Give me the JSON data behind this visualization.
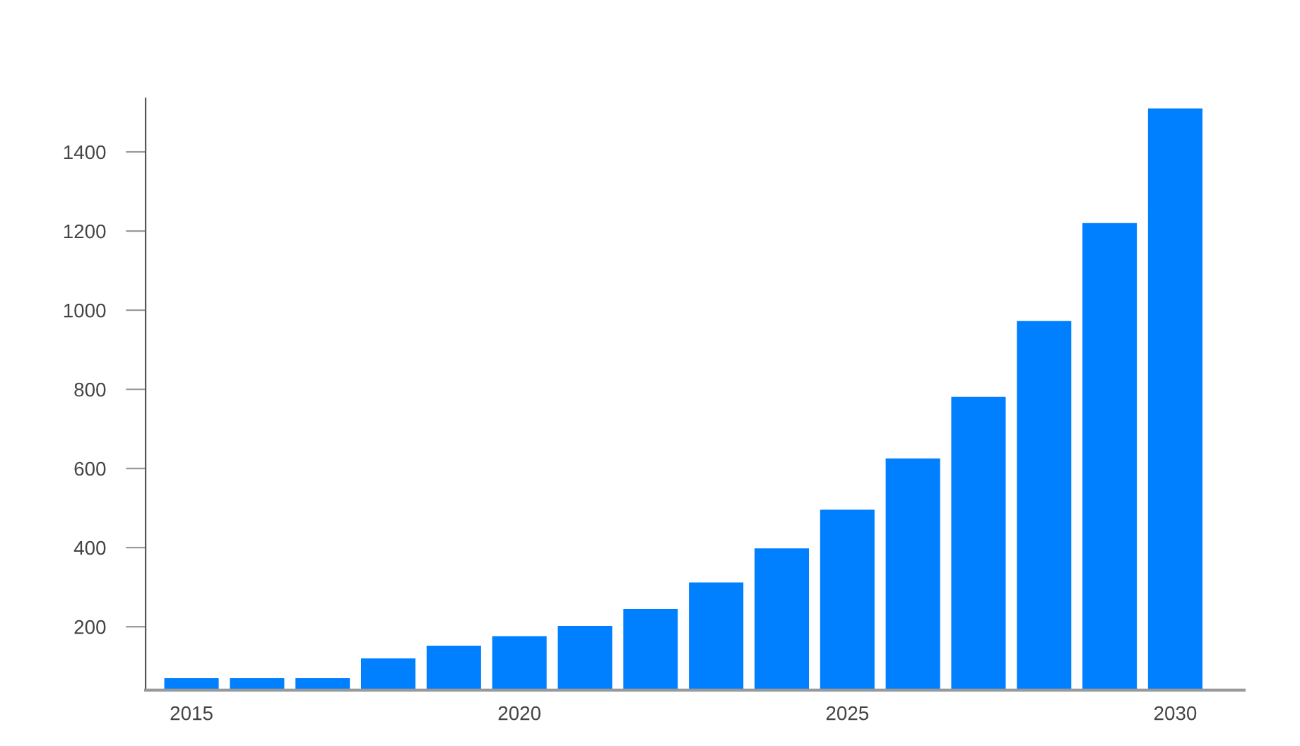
{
  "chart_data": {
    "type": "bar",
    "x": [
      2015,
      2016,
      2017,
      2018,
      2019,
      2020,
      2021,
      2022,
      2023,
      2024,
      2025,
      2026,
      2027,
      2028,
      2029,
      2030
    ],
    "values": [
      70,
      70,
      70,
      120,
      152,
      176,
      202,
      245,
      312,
      398,
      496,
      625,
      781,
      973,
      1220,
      1510
    ],
    "color": "#0080ff",
    "xlim": [
      2014.3,
      2031.05
    ],
    "xticks": [
      2015,
      2020,
      2025,
      2030
    ],
    "ylim": [
      40,
      1535
    ],
    "yticks": [
      200,
      400,
      600,
      800,
      1000,
      1200,
      1400
    ],
    "grid": false
  }
}
